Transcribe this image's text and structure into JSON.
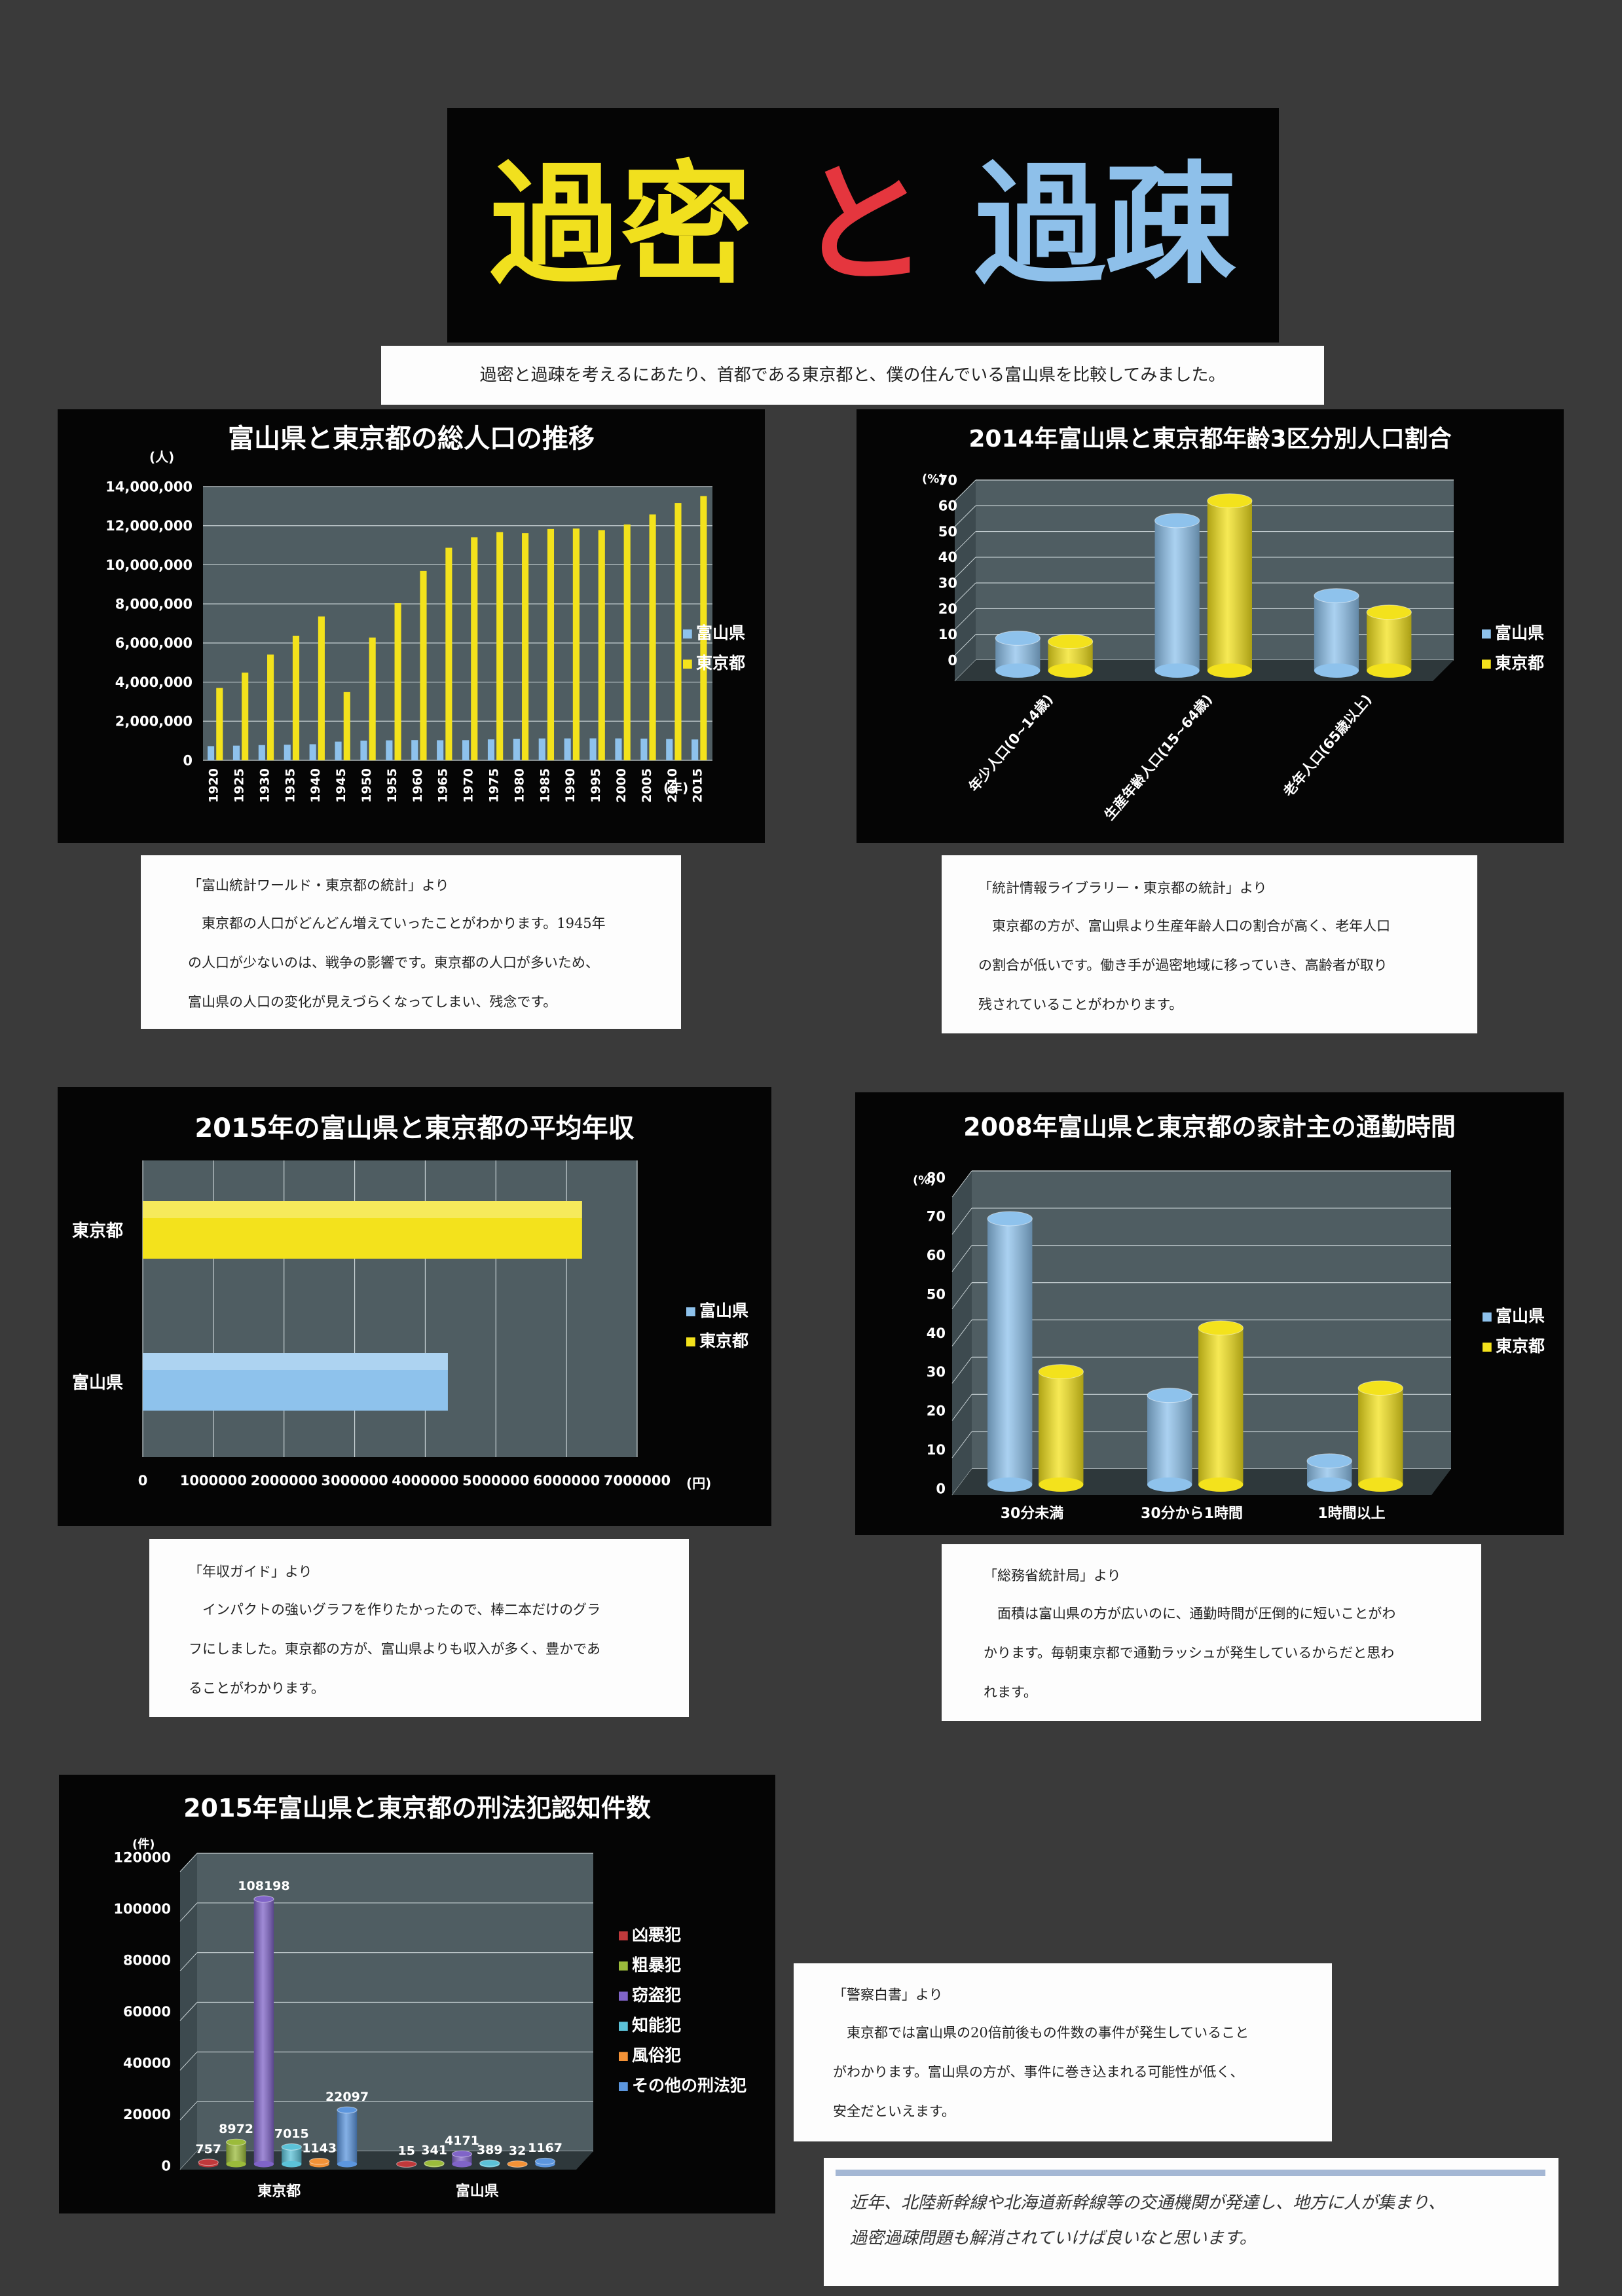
{
  "header": {
    "title_part1": "過密",
    "title_part2": "と",
    "title_part3": "過疎",
    "title_colors": [
      "#f1e01e",
      "#e5363e",
      "#8ec0ea"
    ],
    "intro": "過密と過疎を考えるにあたり、首都である東京都と、僕の住んでいる富山県を比較してみました。"
  },
  "colors": {
    "toyama": "#8ec2ec",
    "tokyo": "#f3e21c",
    "plot_bg": "#4f5d62"
  },
  "chart_data": [
    {
      "type": "bar",
      "title": "富山県と東京都の総人口の推移",
      "ylabel": "(人)",
      "xlabel": "(年)",
      "ylim": [
        0,
        14000000
      ],
      "yticks": [
        "14,000,000",
        "12,000,000",
        "10,000,000",
        "8,000,000",
        "6,000,000",
        "4,000,000",
        "2,000,000",
        "0"
      ],
      "categories": [
        "1920",
        "1925",
        "1930",
        "1935",
        "1940",
        "1945",
        "1950",
        "1955",
        "1960",
        "1965",
        "1970",
        "1975",
        "1980",
        "1985",
        "1990",
        "1995",
        "2000",
        "2005",
        "2010",
        "2015"
      ],
      "series": [
        {
          "name": "富山県",
          "values": [
            724276,
            749243,
            778953,
            798890,
            822569,
            953834,
            1008790,
            1021121,
            1032614,
            1025465,
            1029695,
            1070791,
            1103459,
            1118369,
            1120161,
            1123125,
            1120851,
            1111729,
            1093247,
            1066328
          ]
        },
        {
          "name": "東京都",
          "values": [
            3699428,
            4485144,
            5408678,
            6369919,
            7354971,
            3488284,
            6277500,
            8037084,
            9683802,
            10869244,
            11408071,
            11673554,
            11618281,
            11829363,
            11855563,
            11773605,
            12064101,
            12576601,
            13159388,
            13515271
          ]
        }
      ],
      "legend": "right"
    },
    {
      "type": "bar",
      "title": "2014年富山県と東京都年齢3区分別人口割合",
      "ylabel": "(%)",
      "ylim": [
        0,
        70
      ],
      "yticks": [
        "70",
        "60",
        "50",
        "40",
        "30",
        "20",
        "10",
        "0"
      ],
      "categories": [
        "年少人口(0~14歳)",
        "生産年齢人口(15~64歳)",
        "老年人口(65歳以上)"
      ],
      "series": [
        {
          "name": "富山県",
          "values": [
            12.6,
            58.3,
            29.1
          ]
        },
        {
          "name": "東京都",
          "values": [
            11.3,
            66.0,
            22.7
          ]
        }
      ],
      "legend": "right"
    },
    {
      "type": "bar",
      "orientation": "horizontal",
      "title": "2015年の富山県と東京都の平均年収",
      "xlabel": "(円)",
      "xlim": [
        0,
        7000000
      ],
      "xticks": [
        "0",
        "1000000",
        "2000000",
        "3000000",
        "4000000",
        "5000000",
        "6000000",
        "7000000"
      ],
      "categories": [
        "東京都",
        "富山県"
      ],
      "series": [
        {
          "name": "富山県",
          "values": [
            null,
            4320000
          ]
        },
        {
          "name": "東京都",
          "values": [
            6220000,
            null
          ]
        }
      ],
      "legend": "right"
    },
    {
      "type": "bar",
      "title": "2008年富山県と東京都の家計主の通勤時間",
      "ylabel": "(%)",
      "ylim": [
        0,
        80
      ],
      "yticks": [
        "80",
        "70",
        "60",
        "50",
        "40",
        "30",
        "20",
        "10",
        "0"
      ],
      "categories": [
        "30分未満",
        "30分から1時間",
        "1時間以上"
      ],
      "series": [
        {
          "name": "富山県",
          "values": [
            73.0,
            24.5,
            6.5
          ]
        },
        {
          "name": "東京都",
          "values": [
            31.0,
            43.0,
            26.5
          ]
        }
      ],
      "legend": "right"
    },
    {
      "type": "bar",
      "title": "2015年富山県と東京都の刑法犯認知件数",
      "ylabel": "(件)",
      "ylim": [
        0,
        120000
      ],
      "yticks": [
        "120000",
        "100000",
        "80000",
        "60000",
        "40000",
        "20000",
        "0"
      ],
      "categories": [
        "東京都",
        "富山県"
      ],
      "series": [
        {
          "name": "凶悪犯",
          "color": "#c0393b",
          "values": [
            757,
            15
          ]
        },
        {
          "name": "粗暴犯",
          "color": "#9bbb3b",
          "values": [
            8972,
            341
          ]
        },
        {
          "name": "窃盗犯",
          "color": "#8064c8",
          "values": [
            108198,
            4171
          ]
        },
        {
          "name": "知能犯",
          "color": "#5cc2d8",
          "values": [
            7015,
            389
          ]
        },
        {
          "name": "風俗犯",
          "color": "#f39237",
          "values": [
            1143,
            32
          ]
        },
        {
          "name": "その他の刑法犯",
          "color": "#5c96de",
          "values": [
            22097,
            1167
          ]
        }
      ],
      "labels": [
        [
          "757",
          "8972",
          "108198",
          "7015",
          "1143",
          "22097"
        ],
        [
          "15",
          "341",
          "4171",
          "389",
          "32",
          "1167"
        ]
      ],
      "legend": "right"
    }
  ],
  "notes": {
    "n1": {
      "source": "「富山統計ワールド・東京都の統計」より",
      "lines": [
        "東京都の人口がどんどん増えていったことがわかります。1945年",
        "の人口が少ないのは、戦争の影響です。東京都の人口が多いため、",
        "富山県の人口の変化が見えづらくなってしまい、残念です。"
      ]
    },
    "n2": {
      "source": "「統計情報ライブラリー・東京都の統計」より",
      "lines": [
        "東京都の方が、富山県より生産年齢人口の割合が高く、老年人口",
        "の割合が低いです。働き手が過密地域に移っていき、高齢者が取り",
        "残されていることがわかります。"
      ]
    },
    "n3": {
      "source": "「年収ガイド」より",
      "lines": [
        "インパクトの強いグラフを作りたかったので、棒二本だけのグラ",
        "フにしました。東京都の方が、富山県よりも収入が多く、豊かであ",
        "ることがわかります。"
      ]
    },
    "n4": {
      "source": "「総務省統計局」より",
      "lines": [
        "面積は富山県の方が広いのに、通勤時間が圧倒的に短いことがわ",
        "かります。毎朝東京都で通勤ラッシュが発生しているからだと思わ",
        "れます。"
      ]
    },
    "n5": {
      "source": "「警察白書」より",
      "lines": [
        "東京都では富山県の20倍前後もの件数の事件が発生していること",
        "がわかります。富山県の方が、事件に巻き込まれる可能性が低く、",
        "安全だといえます。"
      ]
    }
  },
  "conclusion": {
    "lines": [
      "近年、北陸新幹線や北海道新幹線等の交通機関が発達し、地方に人が集まり、",
      "過密過疎問題も解消されていけば良いなと思います。"
    ]
  }
}
